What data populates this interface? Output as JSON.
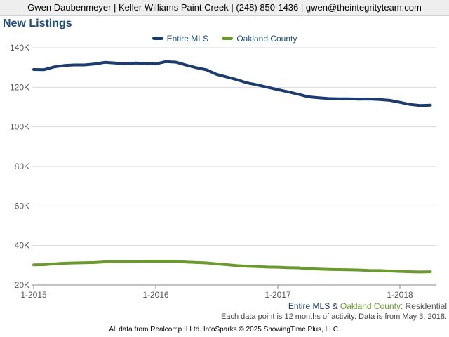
{
  "header": {
    "banner": "Gwen Daubenmeyer | Keller Williams Paint Creek | (248) 850-1436 | gwen@theintegrityteam.com"
  },
  "chart_data": {
    "type": "line",
    "title": "New Listings",
    "xlabel": "",
    "ylabel": "",
    "ylim": [
      20000,
      140000
    ],
    "yticks": [
      20000,
      40000,
      60000,
      80000,
      100000,
      120000,
      140000
    ],
    "ytick_labels": [
      "20K",
      "40K",
      "60K",
      "80K",
      "100K",
      "120K",
      "140K"
    ],
    "xticks": [
      "1-2015",
      "1-2016",
      "1-2017",
      "1-2018"
    ],
    "x": [
      "1-2015",
      "2-2015",
      "3-2015",
      "4-2015",
      "5-2015",
      "6-2015",
      "7-2015",
      "8-2015",
      "9-2015",
      "10-2015",
      "11-2015",
      "12-2015",
      "1-2016",
      "2-2016",
      "3-2016",
      "4-2016",
      "5-2016",
      "6-2016",
      "7-2016",
      "8-2016",
      "9-2016",
      "10-2016",
      "11-2016",
      "12-2016",
      "1-2017",
      "2-2017",
      "3-2017",
      "4-2017",
      "5-2017",
      "6-2017",
      "7-2017",
      "8-2017",
      "9-2017",
      "10-2017",
      "11-2017",
      "12-2017",
      "1-2018",
      "2-2018",
      "3-2018",
      "4-2018"
    ],
    "grid": true,
    "legend_position": "top-center",
    "series": [
      {
        "name": "Entire MLS",
        "color": "#1c3b6e",
        "values": [
          129000,
          128900,
          130300,
          131000,
          131300,
          131300,
          131800,
          132600,
          132300,
          131800,
          132300,
          132000,
          131800,
          133000,
          132700,
          131200,
          129900,
          128800,
          126500,
          125200,
          123800,
          122200,
          121200,
          120000,
          118800,
          117700,
          116500,
          115200,
          114700,
          114300,
          114200,
          114200,
          114000,
          114100,
          113800,
          113400,
          112400,
          111300,
          110800,
          111000
        ]
      },
      {
        "name": "Oakland County",
        "color": "#6a9a2e",
        "values": [
          30200,
          30300,
          30700,
          31000,
          31200,
          31300,
          31400,
          31700,
          31800,
          31800,
          31900,
          32000,
          32000,
          32100,
          31900,
          31600,
          31400,
          31200,
          30700,
          30300,
          29800,
          29500,
          29300,
          29100,
          29000,
          28800,
          28700,
          28300,
          28100,
          27900,
          27800,
          27700,
          27600,
          27400,
          27300,
          27100,
          26900,
          26700,
          26600,
          26700
        ]
      }
    ]
  },
  "subtitle": {
    "part1": "Entire MLS",
    "sep": " & ",
    "part2": "Oakland County",
    "part3": ": Residential"
  },
  "note": "Each data point is 12 months of activity. Data is from May 3, 2018.",
  "footer": "All data from Realcomp II Ltd. InfoSparks © 2025 ShowingTime Plus, LLC."
}
